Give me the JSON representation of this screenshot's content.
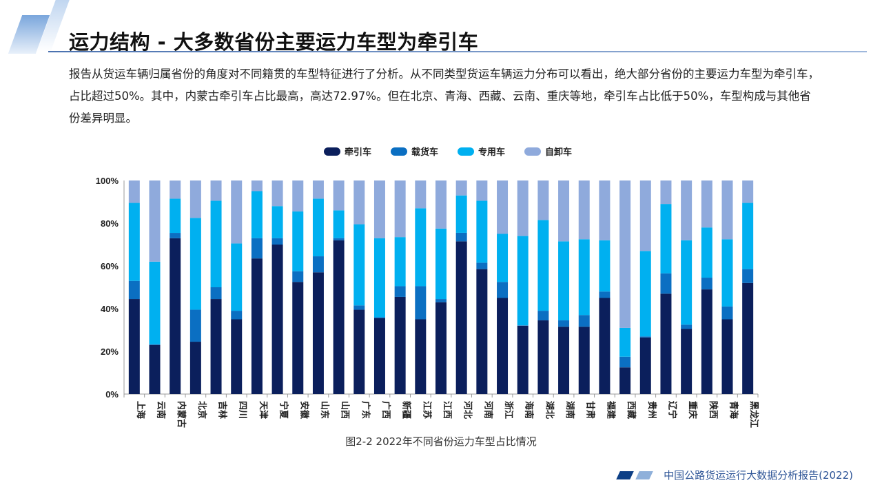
{
  "header": {
    "title": "运力结构 - 大多数省份主要运力车型为牵引车"
  },
  "body": {
    "paragraph": "报告从货运车辆归属省份的角度对不同籍贯的车型特征进行了分析。从不同类型货运车辆运力分布可以看出，绝大部分省份的主要运力车型为牵引车，占比超过50%。其中，内蒙古牵引车占比最高，高达72.97%。但在北京、青海、西藏、云南、重庆等地，牵引车占比低于50%，车型构成与其他省份差异明显。"
  },
  "chart_data": {
    "type": "bar",
    "stacked": true,
    "percent": true,
    "categories": [
      "上海",
      "云南",
      "内蒙古",
      "北京",
      "吉林",
      "四川",
      "天津",
      "宁夏",
      "安徽",
      "山东",
      "山西",
      "广东",
      "广西",
      "新疆",
      "江苏",
      "江西",
      "河北",
      "河南",
      "浙江",
      "海南",
      "湖北",
      "湖南",
      "甘肃",
      "福建",
      "西藏",
      "贵州",
      "辽宁",
      "重庆",
      "陕西",
      "青海",
      "黑龙江"
    ],
    "series": [
      {
        "name": "牵引车",
        "color": "#0b1f5c",
        "values": [
          44.5,
          23,
          72.97,
          24.5,
          44.5,
          35,
          63.5,
          70,
          52.5,
          57,
          72,
          39.5,
          35.5,
          45.5,
          35,
          43,
          71.5,
          58.5,
          45,
          32,
          34.5,
          31.5,
          31.5,
          45,
          12.5,
          26.5,
          47,
          30.5,
          49,
          35,
          52
        ]
      },
      {
        "name": "载货车",
        "color": "#0b6fc2",
        "values": [
          8.5,
          0.3,
          2.5,
          15,
          5.5,
          4,
          9.5,
          3,
          5,
          7.5,
          1,
          2,
          0.5,
          5,
          15.5,
          1.5,
          4,
          3,
          7.5,
          0.2,
          4.5,
          3,
          5.5,
          3,
          5,
          0.5,
          9.5,
          2,
          5.5,
          6,
          6.5
        ]
      },
      {
        "name": "专用车",
        "color": "#00b0f0",
        "values": [
          36.5,
          38.7,
          16,
          43,
          40.5,
          31.5,
          22,
          15,
          28,
          27,
          13,
          38,
          37,
          23,
          36.5,
          33,
          17.5,
          29,
          22.5,
          41.8,
          42.5,
          37,
          35.5,
          24,
          13.5,
          40,
          32.5,
          39.5,
          23.5,
          31.5,
          31
        ]
      },
      {
        "name": "自卸车",
        "color": "#8faadc",
        "values": [
          10.5,
          38,
          8.5,
          17.5,
          9.5,
          29.5,
          5,
          12,
          14.5,
          8.5,
          14,
          20.5,
          27,
          26.5,
          13,
          22.5,
          7,
          9.5,
          25,
          26,
          18.5,
          28.5,
          27.5,
          28,
          69,
          33,
          11,
          28,
          22,
          27.5,
          10.5
        ]
      }
    ],
    "ylim": [
      0,
      100
    ],
    "yticks": [
      "0%",
      "20%",
      "40%",
      "60%",
      "80%",
      "100%"
    ],
    "legend_position": "top",
    "grid": false,
    "caption": "图2-2 2022年不同省份运力车型占比情况"
  },
  "footer": {
    "text": "中国公路货运运行大数据分析报告(2022)"
  }
}
